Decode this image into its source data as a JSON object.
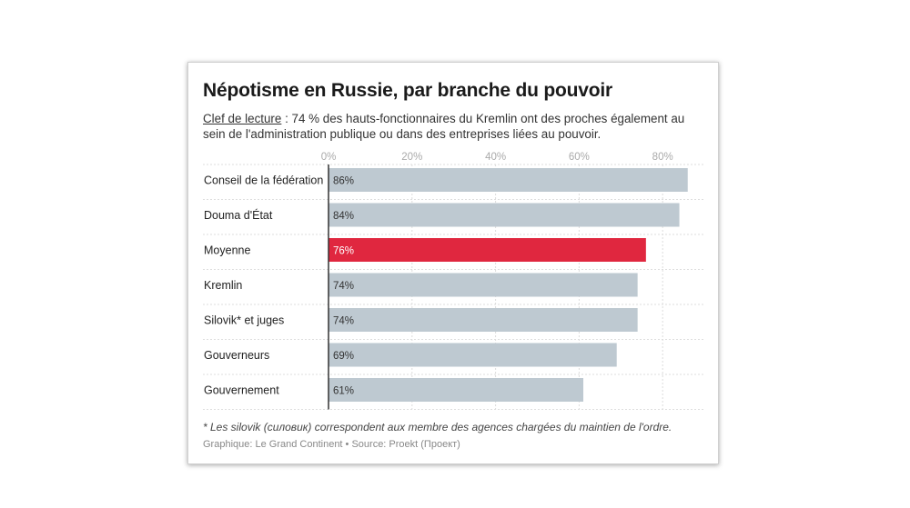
{
  "title": "Népotisme en Russie, par branche du pouvoir",
  "subtitle": {
    "key_label": "Clef de lecture",
    "text": " : 74 % des hauts-fonctionnaires du Kremlin ont des proches également au sein de l'administration publique ou dans des entreprises liées au pouvoir."
  },
  "footnote": "* Les silovik (силовик) correspondent aux membre des agences chargées du maintien de l'ordre.",
  "source": "Graphique: Le Grand Continent • Source: Proekt (Проект)",
  "colors": {
    "bar": "#bec9d1",
    "highlight": "#e0273f",
    "grid": "#dddddd",
    "axis": "#333333"
  },
  "chart_data": {
    "type": "bar",
    "orientation": "horizontal",
    "title": "Népotisme en Russie, par branche du pouvoir",
    "categories": [
      "Conseil de la fédération",
      "Douma d'État",
      "Moyenne",
      "Kremlin",
      "Silovik* et juges",
      "Gouverneurs",
      "Gouvernement"
    ],
    "values": [
      86,
      84,
      76,
      74,
      74,
      69,
      61
    ],
    "labels": [
      "86%",
      "84%",
      "76%",
      "74%",
      "74%",
      "69%",
      "61%"
    ],
    "highlight": "Moyenne",
    "xlim": [
      0,
      90
    ],
    "ticks": [
      0,
      20,
      40,
      60,
      80
    ],
    "tick_labels": [
      "0%",
      "20%",
      "40%",
      "60%",
      "80%"
    ],
    "xlabel": "",
    "ylabel": ""
  }
}
